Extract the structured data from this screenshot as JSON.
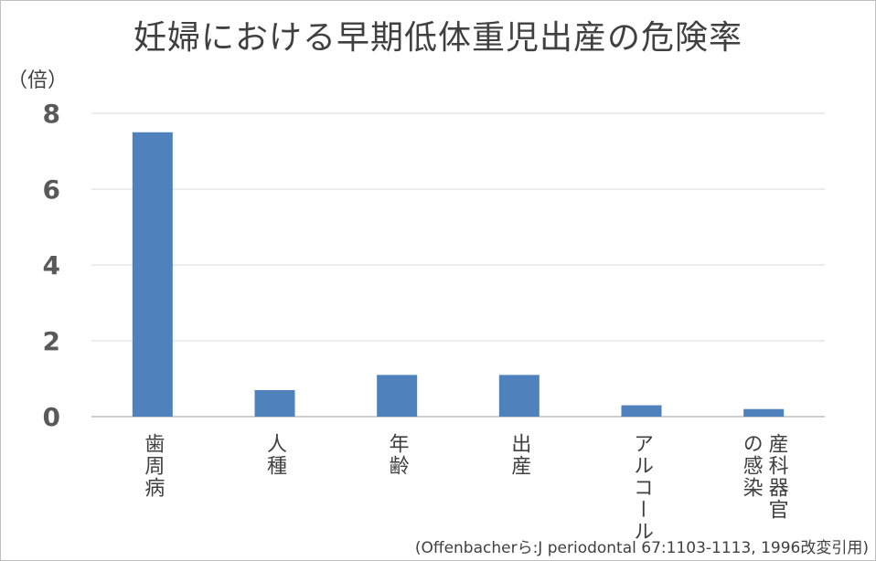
{
  "title": "妊婦における早期低体重児出産の危険率",
  "unit_label": "（倍）",
  "source": "(Offenbacherら:J periodontal 67:1103-1113, 1996改変引用)",
  "colors": {
    "bar": "#4f81bd",
    "grid": "#d9d9d9",
    "axis": "#bfbfbf",
    "text": "#404040"
  },
  "chart_data": {
    "type": "bar",
    "title": "妊婦における早期低体重児出産の危険率",
    "ylabel": "（倍）",
    "xlabel": "",
    "categories": [
      "歯周病",
      "人種",
      "年齢",
      "出産",
      "アルコール",
      "産科器官の感染"
    ],
    "category_lines": [
      [
        "歯周病"
      ],
      [
        "人種"
      ],
      [
        "年齢"
      ],
      [
        "出産"
      ],
      [
        "アルコール"
      ],
      [
        "産科器官",
        "の感染"
      ]
    ],
    "values": [
      7.5,
      0.7,
      1.1,
      1.1,
      0.3,
      0.2
    ],
    "ylim": [
      0,
      8
    ],
    "yticks": [
      0,
      2,
      4,
      6,
      8
    ],
    "grid": true,
    "legend": "none"
  }
}
